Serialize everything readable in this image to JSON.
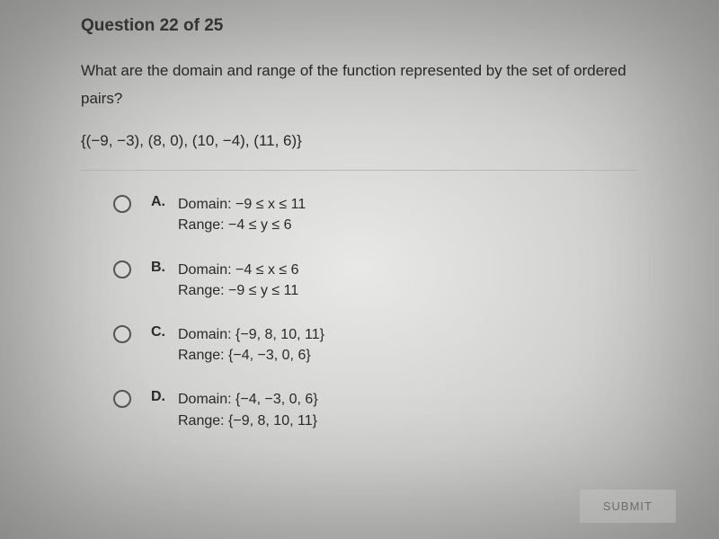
{
  "header": {
    "title": "Question 22 of 25"
  },
  "question": {
    "prompt": "What are the domain and range of the function represented by the set of ordered pairs?",
    "data": "{(−9, −3), (8, 0), (10, −4), (11, 6)}"
  },
  "options": [
    {
      "letter": "A.",
      "line1": "Domain: −9 ≤ x ≤ 11",
      "line2": "Range: −4 ≤ y ≤ 6"
    },
    {
      "letter": "B.",
      "line1": "Domain: −4 ≤ x ≤ 6",
      "line2": "Range: −9 ≤ y ≤ 11"
    },
    {
      "letter": "C.",
      "line1": "Domain: {−9, 8, 10, 11}",
      "line2": "Range: {−4, −3, 0, 6}"
    },
    {
      "letter": "D.",
      "line1": "Domain: {−4, −3, 0, 6}",
      "line2": "Range: {−9, 8, 10, 11}"
    }
  ],
  "submit": {
    "label": "SUBMIT"
  },
  "style": {
    "bg_center": "#e8e8e6",
    "bg_mid": "#d0d0ce",
    "bg_edge": "#a8a8a6",
    "text_color": "#2a2a2a",
    "header_color": "#3a3a3a",
    "radio_border": "#555555",
    "divider_color": "#b8b8b6",
    "submit_bg": "#c9c9c8",
    "submit_text": "#7a7a7a",
    "font_size_header": 19,
    "font_size_body": 17,
    "font_size_option": 16
  }
}
